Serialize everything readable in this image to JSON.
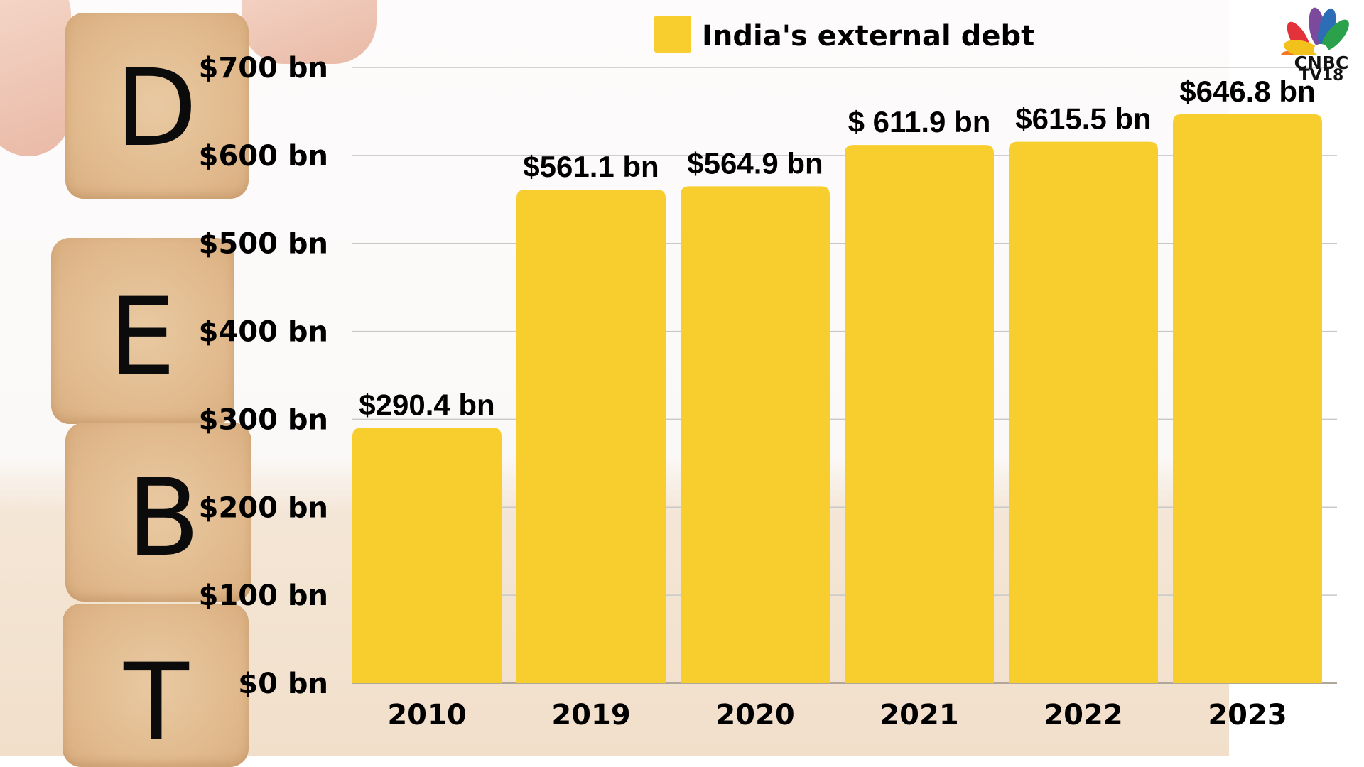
{
  "chart_data": {
    "type": "bar",
    "title": "",
    "legend": {
      "label": "India's external debt",
      "position": "top-center",
      "color": "#F8CE2E"
    },
    "categories": [
      "2010",
      "2019",
      "2020",
      "2021",
      "2022",
      "2023"
    ],
    "series": [
      {
        "name": "India's external debt",
        "unit": "$ bn",
        "values": [
          290.4,
          561.1,
          564.9,
          611.9,
          615.5,
          646.8
        ],
        "color": "#F8CE2E"
      }
    ],
    "data_labels": [
      "$290.4 bn",
      "$561.1 bn",
      "$564.9 bn",
      "$ 611.9 bn",
      "$615.5 bn",
      "$646.8 bn"
    ],
    "yticks": [
      0,
      100,
      200,
      300,
      400,
      500,
      600,
      700
    ],
    "ytick_labels": [
      "$0 bn",
      "$100 bn",
      "$200 bn",
      "$300 bn",
      "$400 bn",
      "$500 bn",
      "$600 bn",
      "$700 bn"
    ],
    "ylim": [
      0,
      700
    ],
    "xlabel": "",
    "ylabel": "",
    "grid": true
  },
  "background": {
    "letters": [
      "D",
      "E",
      "B",
      "T"
    ]
  },
  "branding": {
    "logo_line1": "CNBC",
    "logo_line2": "TV18"
  },
  "colors": {
    "bar": "#F8CE2E",
    "grid": "#c8c8c8",
    "text": "#000000"
  }
}
